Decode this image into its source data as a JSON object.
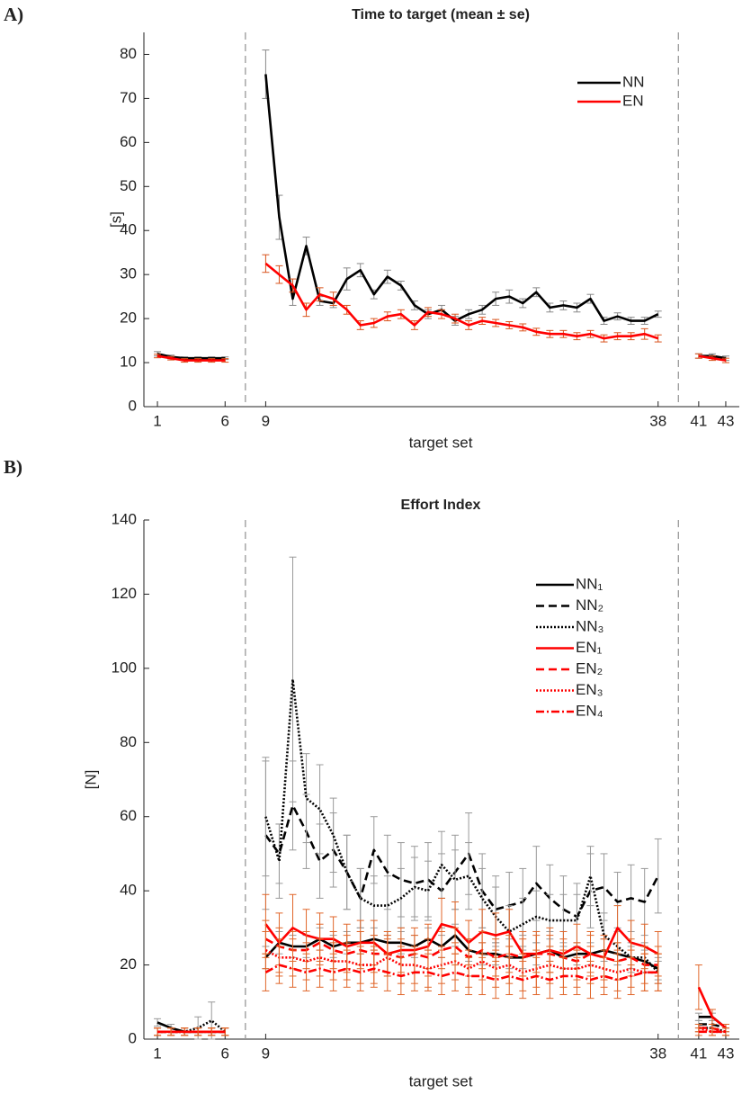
{
  "chart_data": [
    {
      "type": "line",
      "label": "A)",
      "title": "Time to target (mean ± se)",
      "xlabel": "target set",
      "ylabel": "[s]",
      "x": [
        1,
        2,
        3,
        4,
        5,
        6,
        7,
        8,
        9,
        10,
        11,
        12,
        13,
        14,
        15,
        16,
        17,
        18,
        19,
        20,
        21,
        22,
        23,
        24,
        25,
        26,
        27,
        28,
        29,
        30,
        31,
        32,
        33,
        34,
        35,
        36,
        37,
        38,
        39,
        40,
        41,
        42,
        43
      ],
      "xlim": [
        0,
        44
      ],
      "xticks": [
        1,
        6,
        9,
        38,
        41,
        43
      ],
      "ylim": [
        0,
        85
      ],
      "yticks": [
        0,
        10,
        20,
        30,
        40,
        50,
        60,
        70,
        80
      ],
      "phase_boundaries": [
        7.5,
        39.5
      ],
      "legend": "upper right",
      "series": [
        {
          "name": "NN",
          "color": "#000000",
          "error_color": "#888888",
          "dash": "solid",
          "values": [
            12,
            11.3,
            11,
            11,
            11,
            11,
            null,
            null,
            75.5,
            43,
            24.5,
            36.5,
            24,
            23.5,
            29,
            31,
            25.5,
            29.5,
            27.5,
            23,
            21,
            22,
            19.5,
            21,
            22,
            24.5,
            25,
            23.5,
            26,
            22.5,
            23,
            22.5,
            24.5,
            19.5,
            20.5,
            19.5,
            19.5,
            21,
            null,
            null,
            11.5,
            11.5,
            11
          ],
          "errors": [
            0.5,
            0.4,
            0.3,
            0.3,
            0.3,
            0.3,
            null,
            null,
            5.5,
            5,
            1.5,
            2,
            1,
            1,
            2.5,
            1.5,
            1,
            1.5,
            1,
            1,
            1,
            1,
            1,
            1,
            1,
            1.5,
            1.5,
            1,
            1,
            1,
            1,
            1,
            1,
            0.8,
            0.8,
            0.8,
            0.8,
            0.7,
            null,
            null,
            0.5,
            0.5,
            0.5
          ]
        },
        {
          "name": "EN",
          "color": "#ff0000",
          "error_color": "#d9541e",
          "dash": "solid",
          "values": [
            11.5,
            11,
            10.5,
            10.5,
            10.5,
            10.5,
            null,
            null,
            32.5,
            30,
            27.5,
            22,
            25.5,
            24.5,
            22,
            18.5,
            19,
            20.5,
            21,
            18.5,
            21.5,
            21,
            20,
            18.5,
            19.5,
            19,
            18.5,
            18,
            17,
            16.5,
            16.5,
            16,
            16.5,
            15.5,
            16,
            16,
            16.5,
            15.5,
            null,
            null,
            11.5,
            11,
            10.5
          ],
          "errors": [
            0.4,
            0.4,
            0.4,
            0.4,
            0.4,
            0.4,
            null,
            null,
            2,
            2,
            1.5,
            1.5,
            1.5,
            1.5,
            1,
            1,
            1,
            1,
            1,
            1,
            1,
            1,
            1,
            1,
            0.8,
            0.8,
            0.8,
            0.8,
            0.8,
            0.8,
            0.8,
            0.8,
            0.8,
            0.8,
            0.8,
            0.8,
            1.2,
            0.8,
            null,
            null,
            0.5,
            0.5,
            0.5
          ]
        }
      ]
    },
    {
      "type": "line",
      "label": "B)",
      "title": "Effort Index",
      "xlabel": "target set",
      "ylabel": "[N]",
      "x": [
        1,
        2,
        3,
        4,
        5,
        6,
        7,
        8,
        9,
        10,
        11,
        12,
        13,
        14,
        15,
        16,
        17,
        18,
        19,
        20,
        21,
        22,
        23,
        24,
        25,
        26,
        27,
        28,
        29,
        30,
        31,
        32,
        33,
        34,
        35,
        36,
        37,
        38,
        39,
        40,
        41,
        42,
        43
      ],
      "xlim": [
        0,
        44
      ],
      "xticks": [
        1,
        6,
        9,
        38,
        41,
        43
      ],
      "ylim": [
        0,
        140
      ],
      "yticks": [
        0,
        20,
        40,
        60,
        80,
        100,
        120,
        140
      ],
      "phase_boundaries": [
        7.5,
        39.5
      ],
      "legend": "upper right",
      "series": [
        {
          "name": "NN₁",
          "color": "#000000",
          "error_color": "#999999",
          "dash": "solid",
          "values": [
            4.5,
            3,
            2,
            2,
            2,
            2,
            null,
            null,
            22,
            26,
            25,
            25,
            27,
            25,
            26,
            26,
            27,
            26,
            26,
            25,
            27,
            25,
            28,
            24,
            23,
            23,
            22,
            22,
            23,
            24,
            22,
            23,
            23,
            24,
            23,
            22,
            21,
            19,
            null,
            null,
            6,
            6,
            3
          ],
          "errors": [
            1,
            1,
            1,
            1,
            1,
            1,
            null,
            null,
            3,
            3,
            3,
            3,
            3,
            3,
            3,
            3,
            3,
            3,
            3,
            3,
            3,
            3,
            3,
            3,
            3,
            3,
            3,
            3,
            3,
            3,
            3,
            3,
            3,
            3,
            3,
            3,
            3,
            3,
            null,
            null,
            1,
            1,
            1
          ]
        },
        {
          "name": "NN₂",
          "color": "#000000",
          "error_color": "#999999",
          "dash": "dashed",
          "values": [
            2,
            2,
            2,
            2,
            2,
            2,
            null,
            null,
            55,
            50,
            63,
            56,
            48,
            51,
            45,
            38,
            51,
            45,
            43,
            42,
            43,
            40,
            45,
            50,
            40,
            35,
            36,
            37,
            42,
            38,
            35,
            33,
            40,
            41,
            37,
            38,
            37,
            44,
            null,
            null,
            4,
            4,
            3
          ],
          "errors": [
            1,
            1,
            1,
            1,
            1,
            1,
            null,
            null,
            20,
            8,
            12,
            10,
            10,
            10,
            10,
            8,
            9,
            10,
            10,
            10,
            10,
            10,
            10,
            11,
            10,
            9,
            9,
            9,
            10,
            9,
            9,
            9,
            10,
            9,
            8,
            9,
            9,
            10,
            null,
            null,
            1,
            1,
            1
          ]
        },
        {
          "name": "NN₃",
          "color": "#000000",
          "error_color": "#999999",
          "dash": "dotted",
          "values": [
            2,
            2,
            2,
            3,
            5,
            2,
            null,
            null,
            60,
            48,
            97,
            65,
            62,
            55,
            45,
            38,
            36,
            36,
            38,
            41,
            40,
            47,
            43,
            44,
            38,
            33,
            29,
            31,
            33,
            32,
            32,
            32,
            44,
            28,
            25,
            22,
            22,
            18,
            null,
            null,
            3,
            3,
            2
          ],
          "errors": [
            1,
            1,
            1,
            3,
            5,
            1,
            null,
            null,
            16,
            10,
            33,
            12,
            12,
            10,
            10,
            8,
            8,
            8,
            8,
            8,
            8,
            9,
            8,
            9,
            8,
            8,
            7,
            7,
            7,
            7,
            7,
            7,
            8,
            6,
            5,
            4,
            4,
            3,
            null,
            null,
            1,
            1,
            1
          ]
        },
        {
          "name": "EN₁",
          "color": "#ff0000",
          "error_color": "#e0662a",
          "dash": "solid",
          "values": [
            2,
            2,
            2,
            2,
            2,
            2,
            null,
            null,
            31,
            26,
            30,
            28,
            27,
            27,
            25,
            26,
            26,
            23,
            24,
            24,
            25,
            31,
            30,
            26,
            29,
            28,
            29,
            23,
            23,
            24,
            23,
            25,
            23,
            22,
            30,
            26,
            25,
            23,
            null,
            null,
            14,
            6,
            3
          ],
          "errors": [
            1,
            1,
            1,
            1,
            1,
            1,
            null,
            null,
            8,
            8,
            9,
            7,
            7,
            6,
            6,
            6,
            6,
            6,
            6,
            6,
            6,
            7,
            7,
            6,
            6,
            6,
            6,
            6,
            6,
            6,
            6,
            6,
            6,
            6,
            6,
            6,
            6,
            6,
            null,
            null,
            6,
            2,
            1
          ]
        },
        {
          "name": "EN₂",
          "color": "#ff0000",
          "error_color": "#e0662a",
          "dash": "dashed",
          "values": [
            2,
            2,
            2,
            2,
            2,
            2,
            null,
            null,
            27,
            25,
            24,
            24,
            26,
            24,
            23,
            24,
            23,
            23,
            22,
            23,
            22,
            24,
            25,
            22,
            24,
            22,
            23,
            22,
            23,
            23,
            22,
            21,
            23,
            22,
            21,
            22,
            20,
            20,
            null,
            null,
            3,
            3,
            2
          ],
          "errors": [
            1,
            1,
            1,
            1,
            1,
            1,
            null,
            null,
            5,
            5,
            5,
            5,
            5,
            5,
            5,
            5,
            5,
            5,
            5,
            5,
            5,
            5,
            5,
            5,
            5,
            5,
            5,
            5,
            5,
            5,
            5,
            5,
            5,
            5,
            5,
            5,
            5,
            5,
            null,
            null,
            1,
            1,
            1
          ]
        },
        {
          "name": "EN₃",
          "color": "#ff0000",
          "error_color": "#e0662a",
          "dash": "dotted",
          "values": [
            2,
            2,
            2,
            2,
            2,
            2,
            null,
            null,
            24,
            22,
            22,
            21,
            22,
            21,
            21,
            20,
            20,
            22,
            20,
            20,
            19,
            20,
            21,
            19,
            21,
            19,
            20,
            18,
            19,
            20,
            19,
            19,
            20,
            19,
            18,
            19,
            18,
            18,
            null,
            null,
            3,
            2,
            2
          ],
          "errors": [
            1,
            1,
            1,
            1,
            1,
            1,
            null,
            null,
            5,
            5,
            5,
            5,
            5,
            5,
            5,
            5,
            5,
            5,
            5,
            5,
            5,
            5,
            5,
            5,
            5,
            5,
            5,
            5,
            5,
            5,
            5,
            5,
            5,
            5,
            5,
            5,
            5,
            5,
            null,
            null,
            1,
            1,
            1
          ]
        },
        {
          "name": "EN₄",
          "color": "#ff0000",
          "error_color": "#e0662a",
          "dash": "dashdot",
          "values": [
            2,
            2,
            2,
            2,
            2,
            2,
            null,
            null,
            18,
            20,
            19,
            18,
            19,
            18,
            19,
            18,
            19,
            18,
            17,
            18,
            18,
            17,
            18,
            17,
            17,
            16,
            17,
            16,
            17,
            16,
            17,
            17,
            16,
            17,
            16,
            17,
            18,
            18,
            null,
            null,
            2,
            2,
            2
          ],
          "errors": [
            1,
            1,
            1,
            1,
            1,
            1,
            null,
            null,
            5,
            5,
            5,
            5,
            5,
            5,
            5,
            5,
            5,
            5,
            5,
            5,
            5,
            5,
            5,
            5,
            5,
            5,
            5,
            5,
            5,
            5,
            5,
            5,
            5,
            5,
            5,
            5,
            5,
            5,
            null,
            null,
            1,
            1,
            1
          ]
        }
      ]
    }
  ]
}
